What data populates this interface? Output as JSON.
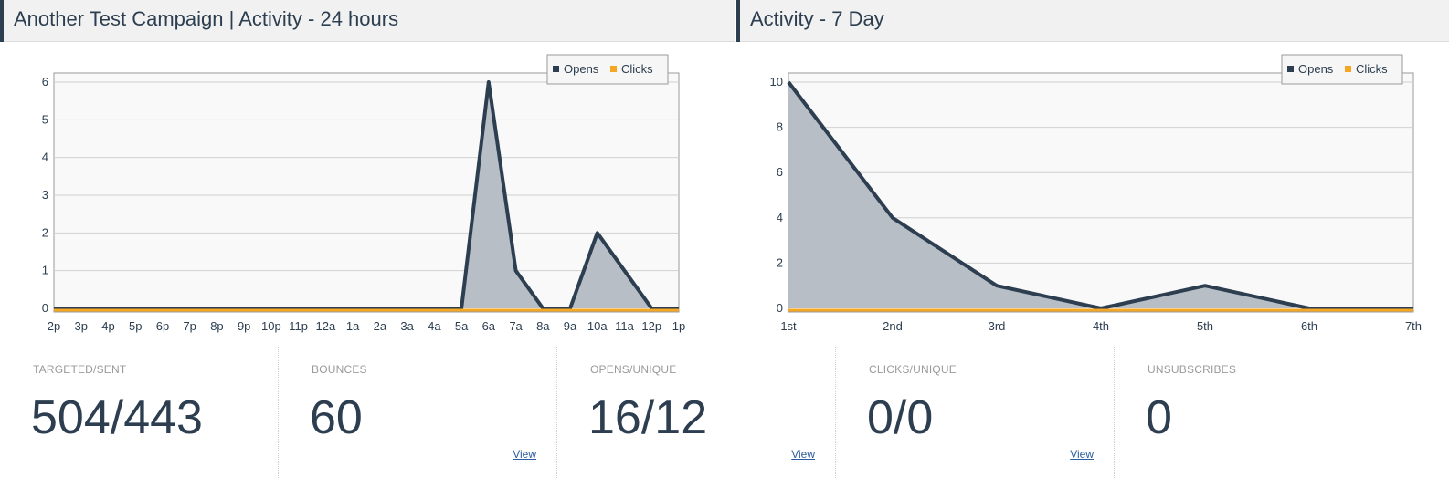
{
  "headers": {
    "left_title": "Another Test Campaign | Activity - 24 hours",
    "right_title": "Activity - 7 Day"
  },
  "colors": {
    "opens": "#2c3e50",
    "opens_fill": "#b8bec6",
    "clicks": "#f5a623",
    "plot_bg": "#f9f9f9",
    "grid": "#d0d0d0"
  },
  "chart_data": [
    {
      "type": "area",
      "title": "Another Test Campaign | Activity - 24 hours",
      "categories": [
        "2p",
        "3p",
        "4p",
        "5p",
        "6p",
        "7p",
        "8p",
        "9p",
        "10p",
        "11p",
        "12a",
        "1a",
        "2a",
        "3a",
        "4a",
        "5a",
        "6a",
        "7a",
        "8a",
        "9a",
        "10a",
        "11a",
        "12p",
        "1p"
      ],
      "series": [
        {
          "name": "Opens",
          "values": [
            0,
            0,
            0,
            0,
            0,
            0,
            0,
            0,
            0,
            0,
            0,
            0,
            0,
            0,
            0,
            0,
            6,
            1,
            0,
            0,
            2,
            1,
            0,
            0
          ]
        },
        {
          "name": "Clicks",
          "values": [
            0,
            0,
            0,
            0,
            0,
            0,
            0,
            0,
            0,
            0,
            0,
            0,
            0,
            0,
            0,
            0,
            0,
            0,
            0,
            0,
            0,
            0,
            0,
            0
          ]
        }
      ],
      "yticks": [
        0,
        1,
        2,
        3,
        4,
        5,
        6
      ],
      "ylim": [
        0,
        6
      ],
      "legend": "top-right",
      "grid": true
    },
    {
      "type": "area",
      "title": "Activity - 7 Day",
      "categories": [
        "1st",
        "2nd",
        "3rd",
        "4th",
        "5th",
        "6th",
        "7th"
      ],
      "series": [
        {
          "name": "Opens",
          "values": [
            10,
            4,
            1,
            0,
            1,
            0,
            0
          ]
        },
        {
          "name": "Clicks",
          "values": [
            0,
            0,
            0,
            0,
            0,
            0,
            0
          ]
        }
      ],
      "yticks": [
        0,
        2,
        4,
        6,
        8,
        10
      ],
      "ylim": [
        0,
        10
      ],
      "legend": "top-right",
      "grid": true
    }
  ],
  "stats": [
    {
      "label": "TARGETED/SENT",
      "value": "504/443",
      "link": ""
    },
    {
      "label": "BOUNCES",
      "value": "60",
      "link": "View"
    },
    {
      "label": "OPENS/UNIQUE",
      "value": "16/12",
      "link": "View"
    },
    {
      "label": "CLICKS/UNIQUE",
      "value": "0/0",
      "link": "View"
    },
    {
      "label": "UNSUBSCRIBES",
      "value": "0",
      "link": ""
    }
  ]
}
